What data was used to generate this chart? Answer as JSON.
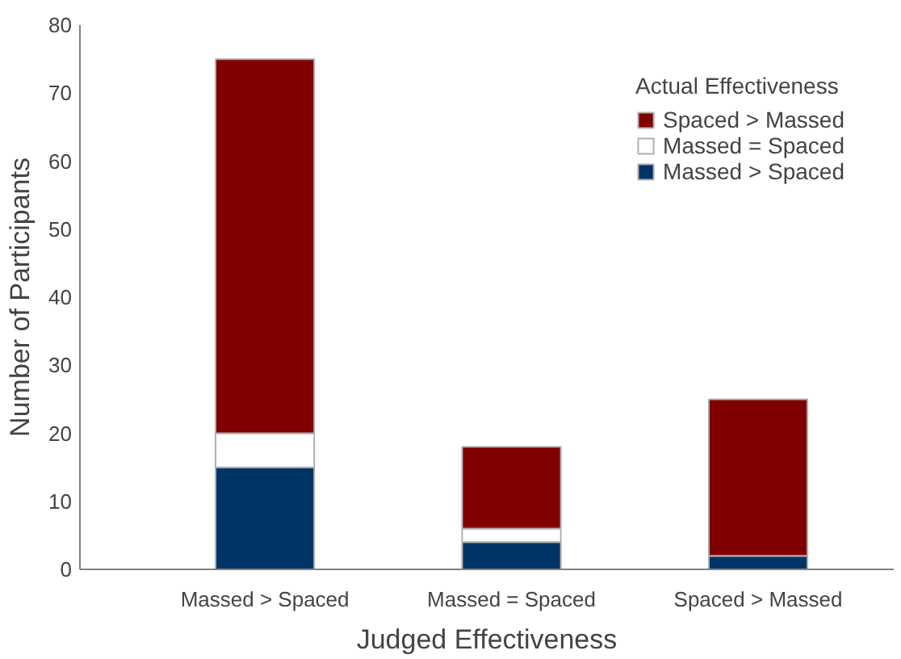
{
  "chart_data": {
    "type": "bar",
    "stacked": true,
    "xlabel": "Judged Effectiveness",
    "ylabel": "Number of Participants",
    "legend_title": "Actual Effectiveness",
    "categories": [
      "Massed > Spaced",
      "Massed = Spaced",
      "Spaced > Massed"
    ],
    "series": [
      {
        "name": "Massed > Spaced",
        "color": "#003366",
        "values": [
          15,
          4,
          2
        ]
      },
      {
        "name": "Massed = Spaced",
        "color": "#ffffff",
        "values": [
          5,
          2,
          0
        ]
      },
      {
        "name": "Spaced > Massed",
        "color": "#800000",
        "values": [
          55,
          12,
          23
        ]
      }
    ],
    "ylim": [
      0,
      80
    ],
    "yticks": [
      0,
      10,
      20,
      30,
      40,
      50,
      60,
      70,
      80
    ],
    "grid": false,
    "legend": "top right"
  }
}
